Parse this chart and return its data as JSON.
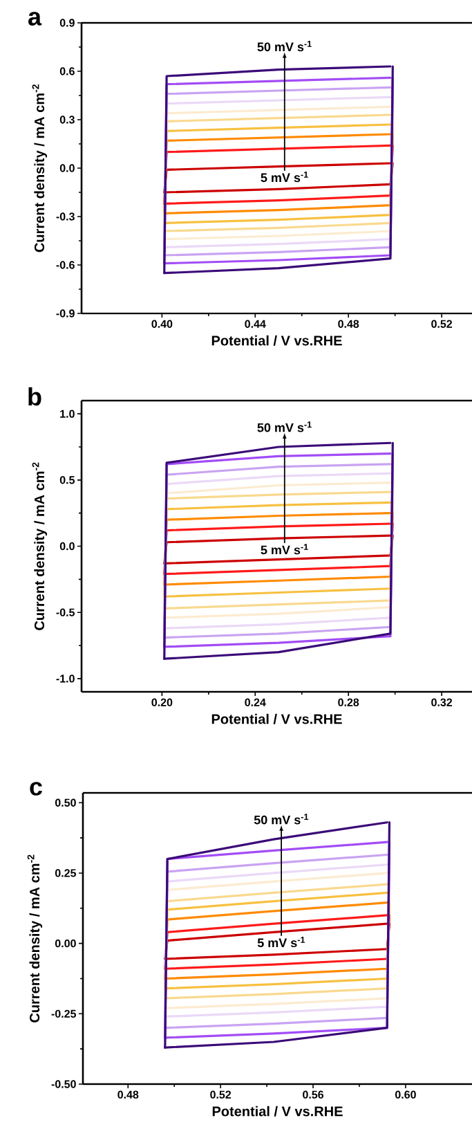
{
  "chart_data": [
    {
      "type": "line",
      "title": "a",
      "xlabel": "Potential / V vs.RHE",
      "ylabel": "Current density / mA cm$^{-2}$",
      "xlim": [
        0.3655,
        0.533
      ],
      "ylim": [
        -0.9,
        0.9
      ],
      "xticks": [
        {
          "value": 0.4,
          "label": "0.40"
        },
        0.44,
        0.48,
        0.52
      ],
      "yticks": [
        -0.9,
        -0.6,
        -0.3,
        {
          "value": 0,
          "label": "0.0"
        },
        0.3,
        0.6,
        0.9
      ],
      "annotations": [
        "50 mV s$^{-1}$",
        "5 mV s$^{-1}$"
      ],
      "series": [
        {
          "color": "#cc0000",
          "x": [
            0.401,
            0.402,
            0.45,
            0.498
          ],
          "values": [
            -0.15,
            -0.01,
            0.01,
            0.03
          ]
        },
        {
          "color": "#cc0000",
          "x": [
            0.401,
            0.45,
            0.498,
            0.499
          ],
          "values": [
            -0.15,
            -0.13,
            -0.1,
            0.03
          ]
        },
        {
          "color": "#ff1a1a",
          "x": [
            0.401,
            0.402,
            0.45,
            0.498
          ],
          "values": [
            -0.22,
            0.1,
            0.12,
            0.14
          ]
        },
        {
          "color": "#ff1a1a",
          "x": [
            0.401,
            0.45,
            0.498,
            0.499
          ],
          "values": [
            -0.22,
            -0.2,
            -0.17,
            0.14
          ]
        },
        {
          "color": "#ff8a00",
          "x": [
            0.401,
            0.402,
            0.45,
            0.498
          ],
          "values": [
            -0.28,
            0.17,
            0.19,
            0.21
          ]
        },
        {
          "color": "#ff8a00",
          "x": [
            0.401,
            0.45,
            0.498,
            0.499
          ],
          "values": [
            -0.28,
            -0.26,
            -0.23,
            0.21
          ]
        },
        {
          "color": "#f7c040",
          "x": [
            0.401,
            0.402,
            0.45,
            0.498
          ],
          "values": [
            -0.34,
            0.23,
            0.25,
            0.27
          ]
        },
        {
          "color": "#f7c040",
          "x": [
            0.401,
            0.45,
            0.498,
            0.499
          ],
          "values": [
            -0.34,
            -0.32,
            -0.29,
            0.27
          ]
        },
        {
          "color": "#f9d98f",
          "x": [
            0.401,
            0.402,
            0.45,
            0.498
          ],
          "values": [
            -0.39,
            0.29,
            0.31,
            0.33
          ]
        },
        {
          "color": "#f9d98f",
          "x": [
            0.401,
            0.45,
            0.498,
            0.499
          ],
          "values": [
            -0.39,
            -0.37,
            -0.34,
            0.33
          ]
        },
        {
          "color": "#fcebd0",
          "x": [
            0.401,
            0.402,
            0.45,
            0.498
          ],
          "values": [
            -0.44,
            0.34,
            0.36,
            0.38
          ]
        },
        {
          "color": "#fcebd0",
          "x": [
            0.401,
            0.45,
            0.498,
            0.499
          ],
          "values": [
            -0.44,
            -0.42,
            -0.39,
            0.38
          ]
        },
        {
          "color": "#ead9f7",
          "x": [
            0.401,
            0.402,
            0.45,
            0.498
          ],
          "values": [
            -0.49,
            0.4,
            0.42,
            0.44
          ]
        },
        {
          "color": "#ead9f7",
          "x": [
            0.401,
            0.45,
            0.498,
            0.499
          ],
          "values": [
            -0.49,
            -0.47,
            -0.44,
            0.44
          ]
        },
        {
          "color": "#c9a3f2",
          "x": [
            0.401,
            0.402,
            0.45,
            0.498
          ],
          "values": [
            -0.54,
            0.46,
            0.48,
            0.5
          ]
        },
        {
          "color": "#c9a3f2",
          "x": [
            0.401,
            0.45,
            0.498,
            0.499
          ],
          "values": [
            -0.54,
            -0.52,
            -0.49,
            0.5
          ]
        },
        {
          "color": "#a24cf5",
          "x": [
            0.401,
            0.402,
            0.45,
            0.498
          ],
          "values": [
            -0.59,
            0.52,
            0.54,
            0.56
          ]
        },
        {
          "color": "#a24cf5",
          "x": [
            0.401,
            0.45,
            0.498,
            0.499
          ],
          "values": [
            -0.59,
            -0.57,
            -0.54,
            0.56
          ]
        },
        {
          "color": "#3b0a78",
          "x": [
            0.401,
            0.402,
            0.45,
            0.498
          ],
          "values": [
            -0.65,
            0.57,
            0.61,
            0.63
          ]
        },
        {
          "color": "#3b0a78",
          "x": [
            0.401,
            0.45,
            0.498,
            0.499
          ],
          "values": [
            -0.65,
            -0.62,
            -0.56,
            0.63
          ]
        }
      ]
    },
    {
      "type": "line",
      "title": "b",
      "xlabel": "Potential / V vs.RHE",
      "ylabel": "Current density / mA cm$^{-2}$",
      "xlim": [
        0.1655,
        0.333
      ],
      "ylim": [
        -1.1,
        1.1
      ],
      "xticks": [
        {
          "value": 0.2,
          "label": "0.20"
        },
        0.24,
        0.28,
        0.32
      ],
      "yticks": [
        {
          "value": -1,
          "label": "-1.0"
        },
        -0.5,
        {
          "value": 0,
          "label": "0.0"
        },
        0.5,
        {
          "value": 1,
          "label": "1.0"
        }
      ],
      "annotations": [
        "50 mV s$^{-1}$",
        "5 mV s$^{-1}$"
      ],
      "series": [
        {
          "color": "#cc0000",
          "x": [
            0.201,
            0.202,
            0.25,
            0.298
          ],
          "values": [
            -0.13,
            0.03,
            0.06,
            0.08
          ]
        },
        {
          "color": "#cc0000",
          "x": [
            0.201,
            0.25,
            0.298,
            0.299
          ],
          "values": [
            -0.13,
            -0.1,
            -0.07,
            0.08
          ]
        },
        {
          "color": "#ff1a1a",
          "x": [
            0.201,
            0.202,
            0.25,
            0.298
          ],
          "values": [
            -0.21,
            0.12,
            0.15,
            0.17
          ]
        },
        {
          "color": "#ff1a1a",
          "x": [
            0.201,
            0.25,
            0.298,
            0.299
          ],
          "values": [
            -0.21,
            -0.18,
            -0.15,
            0.17
          ]
        },
        {
          "color": "#ff8a00",
          "x": [
            0.201,
            0.202,
            0.25,
            0.298
          ],
          "values": [
            -0.29,
            0.2,
            0.23,
            0.25
          ]
        },
        {
          "color": "#ff8a00",
          "x": [
            0.201,
            0.25,
            0.298,
            0.299
          ],
          "values": [
            -0.29,
            -0.26,
            -0.23,
            0.25
          ]
        },
        {
          "color": "#f7c040",
          "x": [
            0.201,
            0.202,
            0.25,
            0.298
          ],
          "values": [
            -0.38,
            0.28,
            0.31,
            0.33
          ]
        },
        {
          "color": "#f7c040",
          "x": [
            0.201,
            0.25,
            0.298,
            0.299
          ],
          "values": [
            -0.38,
            -0.35,
            -0.32,
            0.33
          ]
        },
        {
          "color": "#f9d98f",
          "x": [
            0.201,
            0.202,
            0.25,
            0.298
          ],
          "values": [
            -0.47,
            0.36,
            0.39,
            0.41
          ]
        },
        {
          "color": "#f9d98f",
          "x": [
            0.201,
            0.25,
            0.298,
            0.299
          ],
          "values": [
            -0.47,
            -0.44,
            -0.41,
            0.41
          ]
        },
        {
          "color": "#fcebd0",
          "x": [
            0.201,
            0.202,
            0.25,
            0.298
          ],
          "values": [
            -0.54,
            0.4,
            0.46,
            0.48
          ]
        },
        {
          "color": "#fcebd0",
          "x": [
            0.201,
            0.25,
            0.298,
            0.299
          ],
          "values": [
            -0.54,
            -0.51,
            -0.46,
            0.48
          ]
        },
        {
          "color": "#ead9f7",
          "x": [
            0.201,
            0.202,
            0.25,
            0.298
          ],
          "values": [
            -0.62,
            0.47,
            0.53,
            0.55
          ]
        },
        {
          "color": "#ead9f7",
          "x": [
            0.201,
            0.25,
            0.298,
            0.299
          ],
          "values": [
            -0.62,
            -0.59,
            -0.54,
            0.55
          ]
        },
        {
          "color": "#c9a3f2",
          "x": [
            0.201,
            0.202,
            0.25,
            0.298
          ],
          "values": [
            -0.69,
            0.54,
            0.6,
            0.62
          ]
        },
        {
          "color": "#c9a3f2",
          "x": [
            0.201,
            0.25,
            0.298,
            0.299
          ],
          "values": [
            -0.69,
            -0.66,
            -0.61,
            0.62
          ]
        },
        {
          "color": "#a24cf5",
          "x": [
            0.201,
            0.202,
            0.25,
            0.298
          ],
          "values": [
            -0.76,
            0.62,
            0.68,
            0.7
          ]
        },
        {
          "color": "#a24cf5",
          "x": [
            0.201,
            0.25,
            0.298,
            0.299
          ],
          "values": [
            -0.76,
            -0.73,
            -0.68,
            0.7
          ]
        },
        {
          "color": "#3b0a78",
          "x": [
            0.201,
            0.202,
            0.25,
            0.298
          ],
          "values": [
            -0.85,
            0.63,
            0.75,
            0.78
          ]
        },
        {
          "color": "#3b0a78",
          "x": [
            0.201,
            0.25,
            0.298,
            0.299
          ],
          "values": [
            -0.85,
            -0.8,
            -0.66,
            0.78
          ]
        }
      ]
    },
    {
      "type": "line",
      "title": "c",
      "xlabel": "Potential / V vs.RHE",
      "ylabel": "Current density / mA cm$^{-2}$",
      "xlim": [
        0.4605,
        0.6287
      ],
      "ylim": [
        -0.5,
        0.535
      ],
      "xticks": [
        0.48,
        0.52,
        0.56,
        {
          "value": 0.6,
          "label": "0.60"
        }
      ],
      "yticks": [
        {
          "value": -0.5,
          "label": "-0.50"
        },
        -0.25,
        {
          "value": 0,
          "label": "0.00"
        },
        0.25,
        {
          "value": 0.5,
          "label": "0.50"
        }
      ],
      "annotations": [
        "50 mV s$^{-1}$",
        "5 mV s$^{-1}$"
      ],
      "series": [
        {
          "color": "#cc0000",
          "x": [
            0.496,
            0.497,
            0.543,
            0.592
          ],
          "values": [
            -0.055,
            0.01,
            0.04,
            0.07
          ]
        },
        {
          "color": "#cc0000",
          "x": [
            0.496,
            0.543,
            0.592,
            0.593
          ],
          "values": [
            -0.055,
            -0.04,
            -0.02,
            0.07
          ]
        },
        {
          "color": "#ff1a1a",
          "x": [
            0.496,
            0.497,
            0.543,
            0.592
          ],
          "values": [
            -0.09,
            0.04,
            0.07,
            0.1
          ]
        },
        {
          "color": "#ff1a1a",
          "x": [
            0.496,
            0.543,
            0.592,
            0.593
          ],
          "values": [
            -0.09,
            -0.075,
            -0.055,
            0.1
          ]
        },
        {
          "color": "#ff8a00",
          "x": [
            0.496,
            0.497,
            0.543,
            0.592
          ],
          "values": [
            -0.125,
            0.085,
            0.115,
            0.145
          ]
        },
        {
          "color": "#ff8a00",
          "x": [
            0.496,
            0.543,
            0.592,
            0.593
          ],
          "values": [
            -0.125,
            -0.11,
            -0.09,
            0.145
          ]
        },
        {
          "color": "#f7c040",
          "x": [
            0.496,
            0.497,
            0.543,
            0.592
          ],
          "values": [
            -0.16,
            0.12,
            0.15,
            0.18
          ]
        },
        {
          "color": "#f7c040",
          "x": [
            0.496,
            0.543,
            0.592,
            0.593
          ],
          "values": [
            -0.16,
            -0.145,
            -0.125,
            0.18
          ]
        },
        {
          "color": "#f9d98f",
          "x": [
            0.496,
            0.497,
            0.543,
            0.592
          ],
          "values": [
            -0.195,
            0.15,
            0.18,
            0.21
          ]
        },
        {
          "color": "#f9d98f",
          "x": [
            0.496,
            0.543,
            0.592,
            0.593
          ],
          "values": [
            -0.195,
            -0.18,
            -0.16,
            0.21
          ]
        },
        {
          "color": "#fcebd0",
          "x": [
            0.496,
            0.497,
            0.543,
            0.592
          ],
          "values": [
            -0.23,
            0.19,
            0.22,
            0.25
          ]
        },
        {
          "color": "#fcebd0",
          "x": [
            0.496,
            0.543,
            0.592,
            0.593
          ],
          "values": [
            -0.23,
            -0.215,
            -0.195,
            0.25
          ]
        },
        {
          "color": "#ead9f7",
          "x": [
            0.496,
            0.497,
            0.543,
            0.592
          ],
          "values": [
            -0.26,
            0.22,
            0.25,
            0.28
          ]
        },
        {
          "color": "#ead9f7",
          "x": [
            0.496,
            0.543,
            0.592,
            0.593
          ],
          "values": [
            -0.26,
            -0.245,
            -0.225,
            0.28
          ]
        },
        {
          "color": "#c9a3f2",
          "x": [
            0.496,
            0.497,
            0.543,
            0.592
          ],
          "values": [
            -0.3,
            0.255,
            0.285,
            0.315
          ]
        },
        {
          "color": "#c9a3f2",
          "x": [
            0.496,
            0.543,
            0.592,
            0.593
          ],
          "values": [
            -0.3,
            -0.285,
            -0.265,
            0.315
          ]
        },
        {
          "color": "#a24cf5",
          "x": [
            0.496,
            0.497,
            0.543,
            0.592
          ],
          "values": [
            -0.335,
            0.3,
            0.33,
            0.36
          ]
        },
        {
          "color": "#a24cf5",
          "x": [
            0.496,
            0.543,
            0.592,
            0.593
          ],
          "values": [
            -0.335,
            -0.32,
            -0.3,
            0.36
          ]
        },
        {
          "color": "#3b0a78",
          "x": [
            0.496,
            0.497,
            0.543,
            0.592
          ],
          "values": [
            -0.37,
            0.3,
            0.37,
            0.43
          ]
        },
        {
          "color": "#3b0a78",
          "x": [
            0.496,
            0.543,
            0.592,
            0.593
          ],
          "values": [
            -0.37,
            -0.35,
            -0.3,
            0.43
          ]
        }
      ]
    }
  ]
}
